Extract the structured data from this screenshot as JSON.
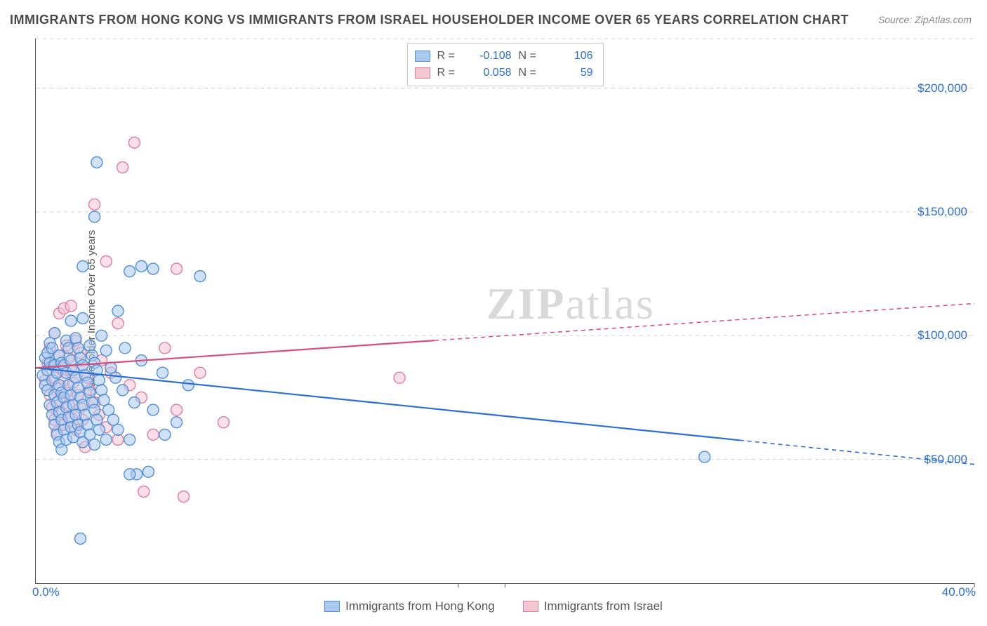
{
  "title": "IMMIGRANTS FROM HONG KONG VS IMMIGRANTS FROM ISRAEL HOUSEHOLDER INCOME OVER 65 YEARS CORRELATION CHART",
  "source_label": "Source:",
  "source_value": "ZipAtlas.com",
  "watermark": "ZIPatlas",
  "ylabel": "Householder Income Over 65 years",
  "chart": {
    "type": "scatter-correlation",
    "background_color": "#ffffff",
    "grid_color": "#d0d0d0",
    "axis_color": "#555555",
    "xlim": [
      0,
      40
    ],
    "ylim": [
      0,
      220000
    ],
    "x_ticks": [
      0,
      20,
      40
    ],
    "x_tick_labels": [
      "0.0%",
      "",
      "40.0%"
    ],
    "y_gridlines": [
      50000,
      100000,
      150000,
      200000
    ],
    "y_tick_labels": [
      "$50,000",
      "$100,000",
      "$150,000",
      "$200,000"
    ],
    "marker_radius": 8,
    "marker_opacity": 0.55,
    "marker_stroke_width": 1.4,
    "line_width": 2.2,
    "series": [
      {
        "id": "hongkong",
        "legend_label": "Immigrants from Hong Kong",
        "fill_color": "#a9c9ee",
        "stroke_color": "#4f8fd8",
        "line_color": "#2b6fd6",
        "R": "-0.108",
        "N": "106",
        "trend": {
          "x1": 0,
          "y1": 87000,
          "x2": 40,
          "y2": 48000,
          "solid_until_x": 30
        },
        "points": [
          [
            0.3,
            84000
          ],
          [
            0.4,
            80000
          ],
          [
            0.4,
            91000
          ],
          [
            0.5,
            78000
          ],
          [
            0.5,
            86000
          ],
          [
            0.5,
            93000
          ],
          [
            0.6,
            72000
          ],
          [
            0.6,
            89000
          ],
          [
            0.6,
            97000
          ],
          [
            0.7,
            68000
          ],
          [
            0.7,
            82000
          ],
          [
            0.7,
            95000
          ],
          [
            0.8,
            64000
          ],
          [
            0.8,
            76000
          ],
          [
            0.8,
            88000
          ],
          [
            0.8,
            101000
          ],
          [
            0.9,
            60000
          ],
          [
            0.9,
            73000
          ],
          [
            0.9,
            85000
          ],
          [
            1.0,
            57000
          ],
          [
            1.0,
            69000
          ],
          [
            1.0,
            80000
          ],
          [
            1.0,
            92000
          ],
          [
            1.1,
            54000
          ],
          [
            1.1,
            66000
          ],
          [
            1.1,
            77000
          ],
          [
            1.1,
            89000
          ],
          [
            1.2,
            62000
          ],
          [
            1.2,
            75000
          ],
          [
            1.2,
            88000
          ],
          [
            1.3,
            58000
          ],
          [
            1.3,
            71000
          ],
          [
            1.3,
            85000
          ],
          [
            1.3,
            98000
          ],
          [
            1.4,
            67000
          ],
          [
            1.4,
            80000
          ],
          [
            1.4,
            95000
          ],
          [
            1.5,
            63000
          ],
          [
            1.5,
            76000
          ],
          [
            1.5,
            90000
          ],
          [
            1.5,
            106000
          ],
          [
            1.6,
            59000
          ],
          [
            1.6,
            72000
          ],
          [
            1.6,
            86000
          ],
          [
            1.7,
            68000
          ],
          [
            1.7,
            83000
          ],
          [
            1.7,
            99000
          ],
          [
            1.8,
            64000
          ],
          [
            1.8,
            79000
          ],
          [
            1.8,
            95000
          ],
          [
            1.9,
            61000
          ],
          [
            1.9,
            75000
          ],
          [
            1.9,
            91000
          ],
          [
            2.0,
            57000
          ],
          [
            2.0,
            72000
          ],
          [
            2.0,
            88000
          ],
          [
            2.0,
            107000
          ],
          [
            2.1,
            68000
          ],
          [
            2.1,
            84000
          ],
          [
            2.2,
            64000
          ],
          [
            2.2,
            81000
          ],
          [
            2.3,
            60000
          ],
          [
            2.3,
            77000
          ],
          [
            2.3,
            96000
          ],
          [
            2.4,
            73000
          ],
          [
            2.4,
            92000
          ],
          [
            2.5,
            56000
          ],
          [
            2.5,
            70000
          ],
          [
            2.5,
            89000
          ],
          [
            2.6,
            66000
          ],
          [
            2.6,
            86000
          ],
          [
            2.7,
            62000
          ],
          [
            2.7,
            82000
          ],
          [
            2.8,
            78000
          ],
          [
            2.8,
            100000
          ],
          [
            2.9,
            74000
          ],
          [
            3.0,
            58000
          ],
          [
            3.0,
            94000
          ],
          [
            3.1,
            70000
          ],
          [
            3.2,
            87000
          ],
          [
            3.3,
            66000
          ],
          [
            3.4,
            83000
          ],
          [
            3.5,
            62000
          ],
          [
            3.5,
            110000
          ],
          [
            3.7,
            78000
          ],
          [
            3.8,
            95000
          ],
          [
            4.0,
            58000
          ],
          [
            4.0,
            126000
          ],
          [
            4.2,
            73000
          ],
          [
            4.3,
            44000
          ],
          [
            4.5,
            90000
          ],
          [
            4.5,
            128000
          ],
          [
            4.8,
            45000
          ],
          [
            5.0,
            70000
          ],
          [
            5.0,
            127000
          ],
          [
            5.4,
            85000
          ],
          [
            5.5,
            60000
          ],
          [
            6.0,
            65000
          ],
          [
            6.5,
            80000
          ],
          [
            7.0,
            124000
          ],
          [
            2.0,
            128000
          ],
          [
            2.5,
            148000
          ],
          [
            2.6,
            170000
          ],
          [
            1.9,
            18000
          ],
          [
            4.0,
            44000
          ],
          [
            28.5,
            51000
          ]
        ]
      },
      {
        "id": "israel",
        "legend_label": "Immigrants from Israel",
        "fill_color": "#f3c6d2",
        "stroke_color": "#e07ba0",
        "line_color": "#d94f7c",
        "R": "0.058",
        "N": "59",
        "trend": {
          "x1": 0,
          "y1": 87000,
          "x2": 40,
          "y2": 113000,
          "solid_until_x": 17
        },
        "points": [
          [
            0.4,
            82000
          ],
          [
            0.5,
            89000
          ],
          [
            0.6,
            76000
          ],
          [
            0.6,
            95000
          ],
          [
            0.7,
            71000
          ],
          [
            0.7,
            88000
          ],
          [
            0.8,
            66000
          ],
          [
            0.8,
            83000
          ],
          [
            0.8,
            101000
          ],
          [
            0.9,
            61000
          ],
          [
            0.9,
            79000
          ],
          [
            1.0,
            74000
          ],
          [
            1.0,
            92000
          ],
          [
            1.0,
            109000
          ],
          [
            1.1,
            69000
          ],
          [
            1.1,
            87000
          ],
          [
            1.2,
            64000
          ],
          [
            1.2,
            82000
          ],
          [
            1.2,
            111000
          ],
          [
            1.3,
            77000
          ],
          [
            1.3,
            96000
          ],
          [
            1.4,
            72000
          ],
          [
            1.4,
            91000
          ],
          [
            1.5,
            67000
          ],
          [
            1.5,
            86000
          ],
          [
            1.5,
            112000
          ],
          [
            1.6,
            81000
          ],
          [
            1.7,
            62000
          ],
          [
            1.7,
            98000
          ],
          [
            1.8,
            76000
          ],
          [
            1.9,
            71000
          ],
          [
            1.9,
            93000
          ],
          [
            2.0,
            66000
          ],
          [
            2.0,
            88000
          ],
          [
            2.1,
            55000
          ],
          [
            2.2,
            83000
          ],
          [
            2.3,
            78000
          ],
          [
            2.5,
            73000
          ],
          [
            2.5,
            153000
          ],
          [
            2.7,
            68000
          ],
          [
            2.8,
            90000
          ],
          [
            3.0,
            63000
          ],
          [
            3.0,
            130000
          ],
          [
            3.2,
            85000
          ],
          [
            3.5,
            58000
          ],
          [
            3.5,
            105000
          ],
          [
            3.7,
            168000
          ],
          [
            4.0,
            80000
          ],
          [
            4.2,
            178000
          ],
          [
            4.5,
            75000
          ],
          [
            4.6,
            37000
          ],
          [
            5.0,
            60000
          ],
          [
            5.5,
            95000
          ],
          [
            6.0,
            70000
          ],
          [
            6.0,
            127000
          ],
          [
            6.3,
            35000
          ],
          [
            7.0,
            85000
          ],
          [
            8.0,
            65000
          ],
          [
            15.5,
            83000
          ]
        ]
      }
    ]
  }
}
